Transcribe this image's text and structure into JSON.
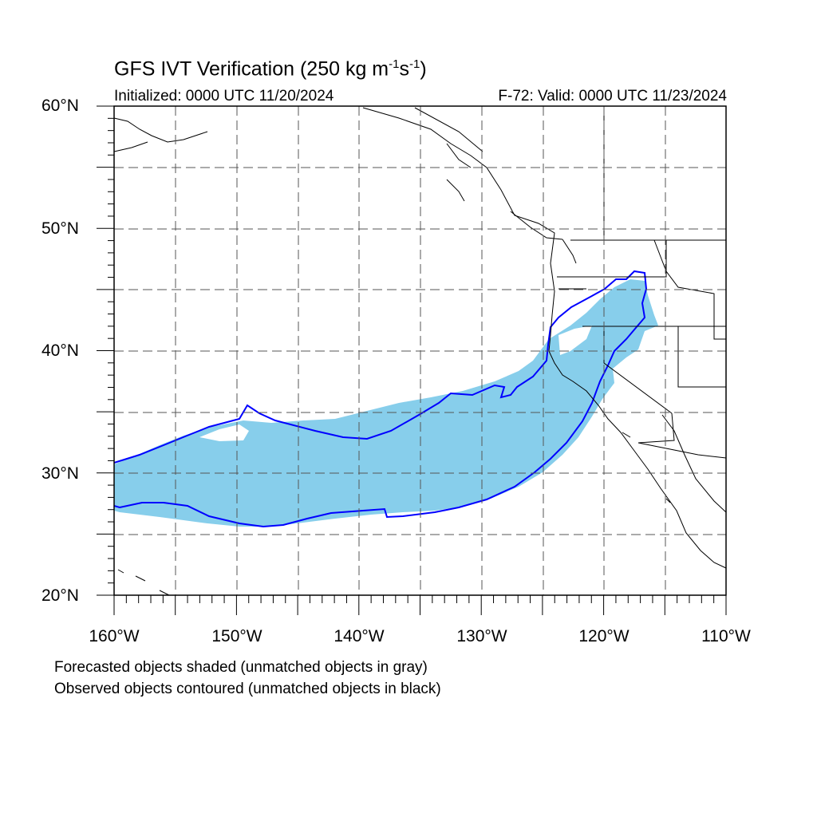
{
  "title": {
    "main": "GFS IVT Verification (250 kg m",
    "exp1": "-1",
    "s": "s",
    "exp2": "-1",
    "close": ")"
  },
  "subtitle": {
    "left": "Initialized: 0000 UTC 11/20/2024",
    "right": "F-72: Valid: 0000 UTC 11/23/2024"
  },
  "lat_labels": [
    "60°N",
    "50°N",
    "40°N",
    "30°N",
    "20°N"
  ],
  "lon_labels": [
    "160°W",
    "150°W",
    "140°W",
    "130°W",
    "120°W",
    "110°W"
  ],
  "notes": [
    "Forecasted objects shaded (unmatched objects in gray)",
    "Observed objects contoured (unmatched objects in black)"
  ],
  "colors": {
    "forecast_fill": "#87ceeb",
    "observed_contour": "#0000ff",
    "coastline": "#000000",
    "grid": "#555555"
  }
}
